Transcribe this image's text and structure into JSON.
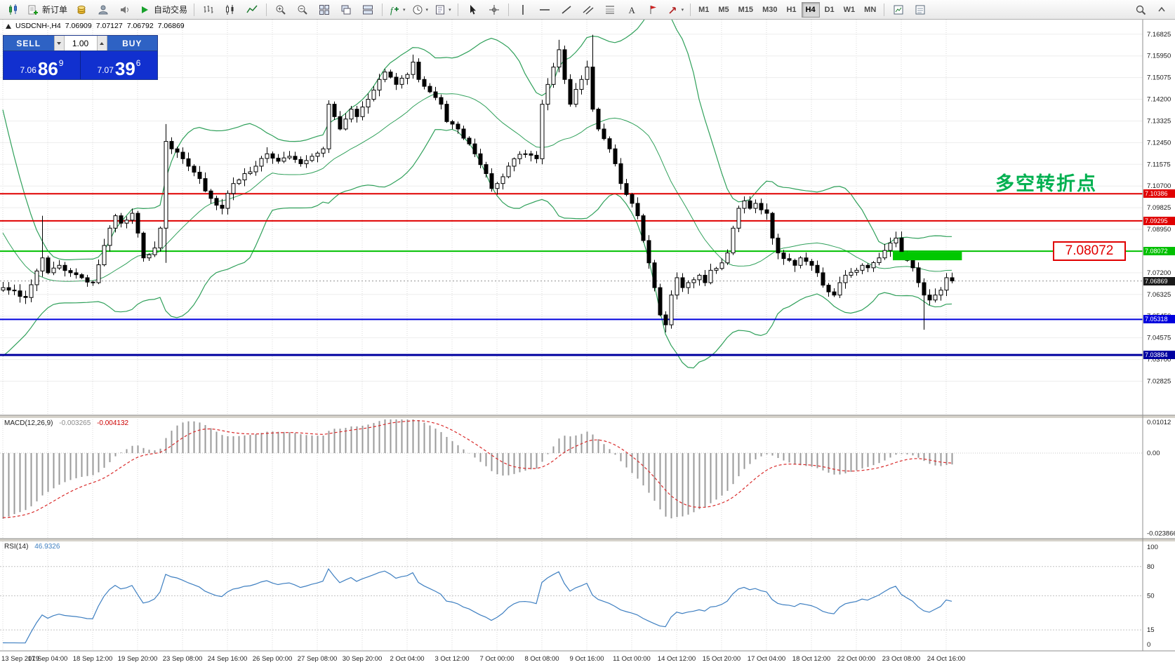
{
  "toolbar": {
    "items": [
      {
        "icon": "candle-chart"
      },
      {
        "icon": "order-form",
        "label": "新订单"
      },
      {
        "icon": "gold"
      },
      {
        "icon": "profile"
      },
      {
        "icon": "sound"
      },
      {
        "icon": "autotrade-play",
        "label": "自动交易"
      },
      {
        "sep": true
      },
      {
        "icon": "bar-chart"
      },
      {
        "icon": "candlestick-chart"
      },
      {
        "icon": "line-chart"
      },
      {
        "sep": true
      },
      {
        "icon": "zoom-in"
      },
      {
        "icon": "zoom-out"
      },
      {
        "icon": "tile-windows"
      },
      {
        "icon": "cascade-windows"
      },
      {
        "icon": "arrange-windows"
      },
      {
        "sep": true
      },
      {
        "icon": "indicators",
        "dd": true
      },
      {
        "icon": "periods",
        "dd": true
      },
      {
        "icon": "templates",
        "dd": true
      },
      {
        "sep": true
      },
      {
        "icon": "cursor"
      },
      {
        "icon": "crosshair"
      },
      {
        "sep": true
      },
      {
        "icon": "vertical-line"
      },
      {
        "icon": "horizontal-line"
      },
      {
        "icon": "trendline"
      },
      {
        "icon": "channel"
      },
      {
        "icon": "fibonacci"
      },
      {
        "icon": "text-tool"
      },
      {
        "icon": "label-tool"
      },
      {
        "icon": "arrows-tool",
        "dd": true
      },
      {
        "sep": true
      },
      {
        "tf": "M1"
      },
      {
        "tf": "M5"
      },
      {
        "tf": "M15"
      },
      {
        "tf": "M30"
      },
      {
        "tf": "H1"
      },
      {
        "tf": "H4",
        "active": true
      },
      {
        "tf": "D1"
      },
      {
        "tf": "W1"
      },
      {
        "tf": "MN"
      },
      {
        "sep": true
      },
      {
        "icon": "indicator-list"
      },
      {
        "icon": "template-doc"
      }
    ],
    "items_right": [
      {
        "icon": "search"
      },
      {
        "icon": "collapse-toolbar"
      }
    ]
  },
  "chart_info": {
    "symbol": "USDCNH-,H4",
    "open": "7.06909",
    "high": "7.07127",
    "low": "7.06792",
    "close": "7.06869"
  },
  "trade_panel": {
    "sell_label": "SELL",
    "buy_label": "BUY",
    "lots": "1.00",
    "sell_price_prefix": "7.06",
    "sell_price_big": "86",
    "sell_price_sup": "9",
    "buy_price_prefix": "7.07",
    "buy_price_big": "39",
    "buy_price_sup": "6"
  },
  "chart_data": {
    "type": "candlestick",
    "symbol": "USDCNH-,H4",
    "candle_count": 170,
    "candles_per_label": 8,
    "x_labels": [
      "13 Sep 2019",
      "17 Sep 04:00",
      "18 Sep 12:00",
      "19 Sep 20:00",
      "23 Sep 08:00",
      "24 Sep 16:00",
      "26 Sep 00:00",
      "27 Sep 08:00",
      "30 Sep 20:00",
      "2 Oct 04:00",
      "3 Oct 12:00",
      "7 Oct 00:00",
      "8 Oct 08:00",
      "9 Oct 16:00",
      "11 Oct 00:00",
      "14 Oct 12:00",
      "15 Oct 20:00",
      "17 Oct 04:00",
      "18 Oct 12:00",
      "22 Oct 00:00",
      "23 Oct 08:00",
      "24 Oct 16:00"
    ],
    "close_keypoints": [
      [
        0,
        7.066
      ],
      [
        1,
        7.065
      ],
      [
        4,
        7.062
      ],
      [
        7,
        7.078
      ],
      [
        8,
        7.072
      ],
      [
        10,
        7.075
      ],
      [
        12,
        7.072
      ],
      [
        14,
        7.07
      ],
      [
        16,
        7.068
      ],
      [
        19,
        7.09
      ],
      [
        20,
        7.095
      ],
      [
        21,
        7.092
      ],
      [
        23,
        7.096
      ],
      [
        24,
        7.088
      ],
      [
        25,
        7.078
      ],
      [
        27,
        7.082
      ],
      [
        28,
        7.09
      ],
      [
        29,
        7.125
      ],
      [
        30,
        7.122
      ],
      [
        32,
        7.118
      ],
      [
        33,
        7.115
      ],
      [
        35,
        7.11
      ],
      [
        36,
        7.105
      ],
      [
        37,
        7.102
      ],
      [
        39,
        7.098
      ],
      [
        40,
        7.104
      ],
      [
        41,
        7.108
      ],
      [
        43,
        7.112
      ],
      [
        45,
        7.115
      ],
      [
        47,
        7.12
      ],
      [
        49,
        7.117
      ],
      [
        51,
        7.119
      ],
      [
        53,
        7.116
      ],
      [
        55,
        7.119
      ],
      [
        57,
        7.122
      ],
      [
        58,
        7.14
      ],
      [
        59,
        7.135
      ],
      [
        60,
        7.13
      ],
      [
        62,
        7.138
      ],
      [
        63,
        7.135
      ],
      [
        65,
        7.142
      ],
      [
        67,
        7.15
      ],
      [
        68,
        7.153
      ],
      [
        70,
        7.148
      ],
      [
        72,
        7.152
      ],
      [
        73,
        7.157
      ],
      [
        74,
        7.15
      ],
      [
        76,
        7.145
      ],
      [
        78,
        7.14
      ],
      [
        79,
        7.133
      ],
      [
        81,
        7.13
      ],
      [
        83,
        7.124
      ],
      [
        84,
        7.12
      ],
      [
        86,
        7.112
      ],
      [
        87,
        7.106
      ],
      [
        88,
        7.108
      ],
      [
        90,
        7.115
      ],
      [
        91,
        7.118
      ],
      [
        93,
        7.12
      ],
      [
        95,
        7.118
      ],
      [
        96,
        7.14
      ],
      [
        97,
        7.148
      ],
      [
        98,
        7.155
      ],
      [
        99,
        7.162
      ],
      [
        100,
        7.15
      ],
      [
        101,
        7.14
      ],
      [
        102,
        7.146
      ],
      [
        103,
        7.15
      ],
      [
        104,
        7.155
      ],
      [
        105,
        7.138
      ],
      [
        106,
        7.13
      ],
      [
        108,
        7.122
      ],
      [
        109,
        7.116
      ],
      [
        110,
        7.108
      ],
      [
        112,
        7.1
      ],
      [
        113,
        7.095
      ],
      [
        114,
        7.085
      ],
      [
        115,
        7.076
      ],
      [
        116,
        7.066
      ],
      [
        117,
        7.055
      ],
      [
        118,
        7.051
      ],
      [
        119,
        7.063
      ],
      [
        120,
        7.07
      ],
      [
        121,
        7.066
      ],
      [
        122,
        7.068
      ],
      [
        124,
        7.071
      ],
      [
        125,
        7.068
      ],
      [
        126,
        7.073
      ],
      [
        128,
        7.076
      ],
      [
        129,
        7.08
      ],
      [
        130,
        7.09
      ],
      [
        131,
        7.098
      ],
      [
        132,
        7.101
      ],
      [
        133,
        7.098
      ],
      [
        134,
        7.1
      ],
      [
        136,
        7.096
      ],
      [
        137,
        7.086
      ],
      [
        138,
        7.08
      ],
      [
        140,
        7.077
      ],
      [
        141,
        7.075
      ],
      [
        142,
        7.078
      ],
      [
        144,
        7.075
      ],
      [
        145,
        7.072
      ],
      [
        146,
        7.067
      ],
      [
        148,
        7.063
      ],
      [
        149,
        7.068
      ],
      [
        150,
        7.071
      ],
      [
        152,
        7.073
      ],
      [
        153,
        7.075
      ],
      [
        154,
        7.074
      ],
      [
        156,
        7.078
      ],
      [
        157,
        7.081
      ],
      [
        158,
        7.084
      ],
      [
        159,
        7.086
      ],
      [
        160,
        7.08
      ],
      [
        162,
        7.074
      ],
      [
        163,
        7.068
      ],
      [
        164,
        7.063
      ],
      [
        165,
        7.061
      ],
      [
        166,
        7.063
      ],
      [
        167,
        7.065
      ],
      [
        168,
        7.07
      ],
      [
        169,
        7.0687
      ]
    ],
    "pre_closes": [
      7.15,
      7.142,
      7.134,
      7.126,
      7.118,
      7.11,
      7.103,
      7.096,
      7.09,
      7.084,
      7.079,
      7.075,
      7.072,
      7.07,
      7.068,
      7.067,
      7.066,
      7.066,
      7.065,
      7.065
    ],
    "wick_overrides": {
      "7": {
        "high": 7.095
      },
      "29": {
        "high": 7.132,
        "low": 7.076
      },
      "73": {
        "high": 7.16
      },
      "99": {
        "high": 7.166
      },
      "105": {
        "high": 7.168
      },
      "118": {
        "low": 7.048
      },
      "164": {
        "low": 7.049
      }
    },
    "y_axis": {
      "ticks": [
        "7.16825",
        "7.15950",
        "7.15075",
        "7.14200",
        "7.13325",
        "7.12450",
        "7.11575",
        "7.10700",
        "7.09825",
        "7.08950",
        "7.08075",
        "7.07200",
        "7.06325",
        "7.05450",
        "7.04575",
        "7.03700",
        "7.02825"
      ]
    },
    "hlines": [
      {
        "price": 7.10386,
        "label": "7.10386",
        "color": "#e00000",
        "width": 2
      },
      {
        "price": 7.09295,
        "label": "7.09295",
        "color": "#e00000",
        "width": 2
      },
      {
        "price": 7.08072,
        "label": "7.08072",
        "color": "#00c000",
        "width": 2
      },
      {
        "price": 7.05318,
        "label": "7.05318",
        "color": "#0000dd",
        "width": 2
      },
      {
        "price": 7.03884,
        "label": "7.03884",
        "color": "#0000a0",
        "width": 3
      }
    ],
    "price_marker": {
      "price": 7.06869,
      "label": "7.06869",
      "bg": "#1a1a1a"
    },
    "highlight_box": {
      "from_candle": 158.5,
      "to_candle": 170.8,
      "price_top": 7.08072,
      "color": "#00c800"
    },
    "bollinger": {
      "period": 20,
      "deviation": 2,
      "color": "#2fa05a"
    },
    "macd": {
      "label": "MACD(12,26,9)",
      "values": [
        "-0.003265",
        "-0.004132"
      ],
      "fast": 12,
      "slow": 26,
      "signal": 9,
      "ticks": [
        "0.01012",
        "0.00",
        "-0.023866"
      ]
    },
    "rsi": {
      "label": "RSI(14)",
      "value": "46.9326",
      "period": 14,
      "levels": [
        80,
        50,
        15
      ],
      "ticks": [
        "100",
        "80",
        "50",
        "15",
        "0"
      ]
    },
    "annotation": {
      "text": "多空转折点",
      "color": "#00b050"
    },
    "callout": {
      "text": "7.08072",
      "color": "#e00000"
    }
  }
}
